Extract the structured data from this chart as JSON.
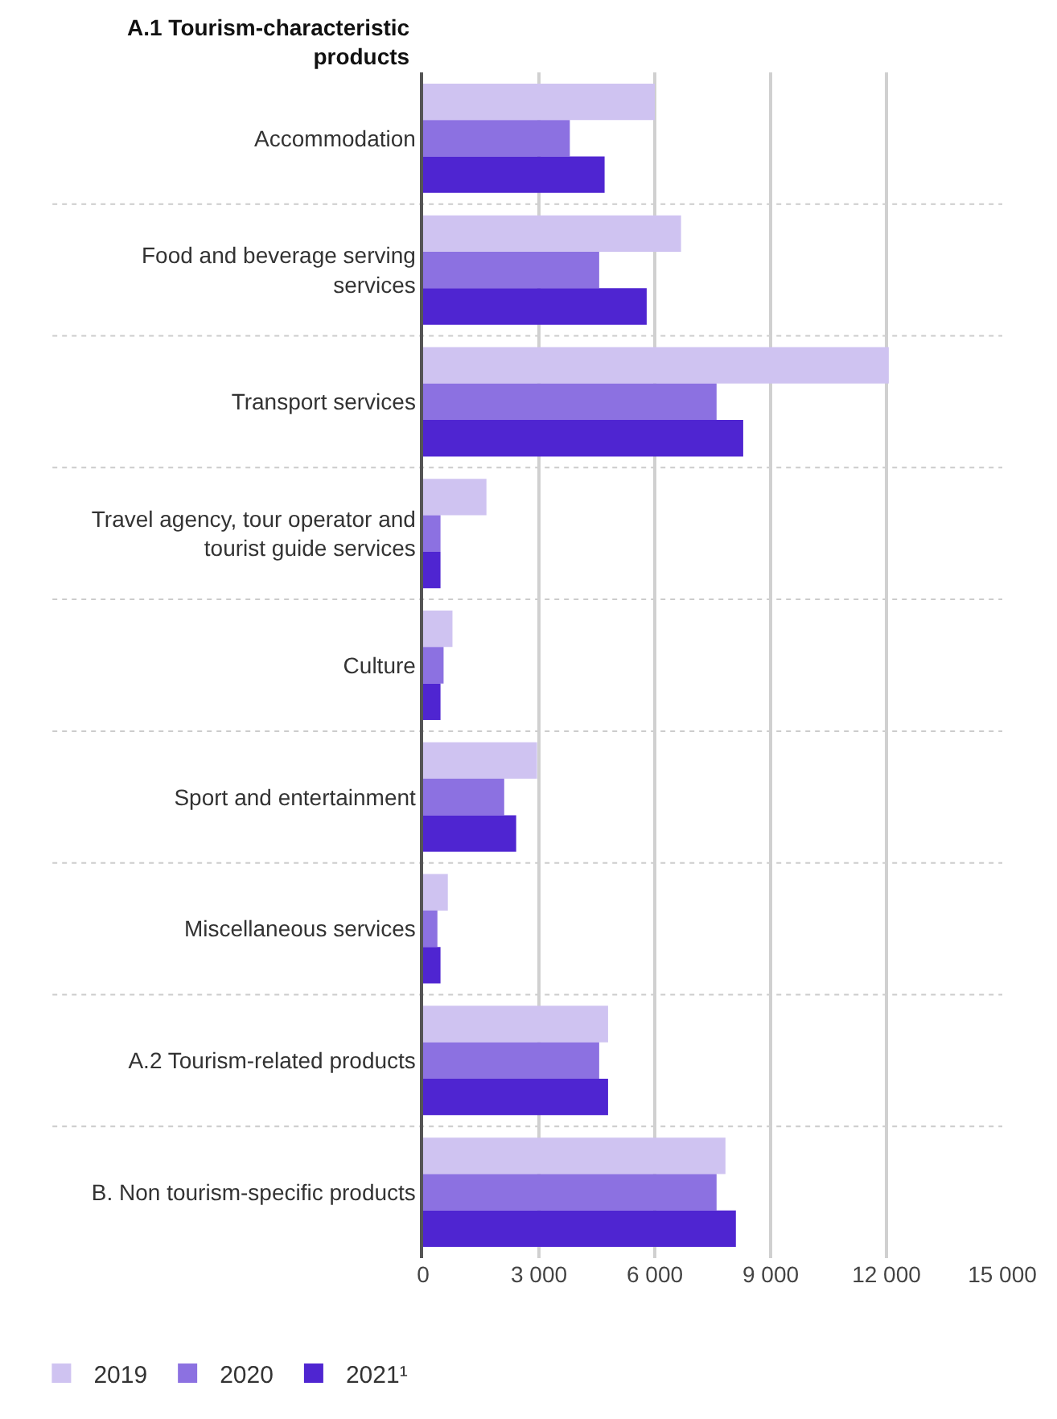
{
  "chart_data": {
    "type": "bar",
    "orientation": "horizontal",
    "categories": [
      "Accommodation",
      "Food and beverage serving services",
      "Transport services",
      "Travel agency, tour operator and tourist guide services",
      "Culture",
      "Sport and entertainment",
      "Miscellaneous services",
      "A.2 Tourism-related products",
      "B. Non tourism-specific products"
    ],
    "series": [
      {
        "name": "2019",
        "color": "#cfc3f1",
        "values": [
          6000,
          6680,
          12060,
          1640,
          760,
          2950,
          640,
          4790,
          7830
        ]
      },
      {
        "name": "2020",
        "color": "#8c71e1",
        "values": [
          3800,
          4560,
          7600,
          450,
          530,
          2100,
          370,
          4560,
          7600
        ]
      },
      {
        "name": "2021¹",
        "color": "#4f25d1",
        "values": [
          4700,
          5790,
          8290,
          450,
          450,
          2410,
          450,
          4790,
          8100
        ]
      }
    ],
    "xlim": [
      0,
      15000
    ],
    "xticks": [
      0,
      {
        "value": 3000,
        "label": "3 000"
      },
      {
        "value": 6000,
        "label": "6 000"
      },
      {
        "value": 9000,
        "label": "9 000"
      },
      {
        "value": 12000,
        "label": "12 000"
      },
      {
        "value": 15000,
        "label": "15 000"
      }
    ],
    "grid": "x",
    "legend": "bottom left",
    "annotations": [
      "A.1 Tourism-characteristic products"
    ]
  }
}
